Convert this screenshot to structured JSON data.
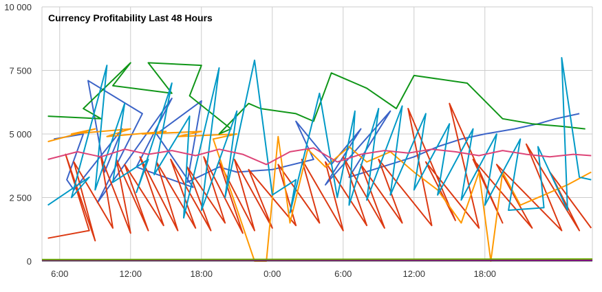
{
  "chart_data": {
    "type": "line",
    "title": "Currency Profitability Last 48 Hours",
    "xlabel": "",
    "ylabel": "",
    "ylim": [
      0,
      10000
    ],
    "xlim": [
      4.5,
      51.1
    ],
    "grid": true,
    "y_ticks": [
      {
        "value": 0,
        "label": "0"
      },
      {
        "value": 2500,
        "label": "2 500"
      },
      {
        "value": 5000,
        "label": "5 000"
      },
      {
        "value": 7500,
        "label": "7 500"
      },
      {
        "value": 10000,
        "label": "10 000"
      }
    ],
    "x_ticks": [
      {
        "value": 6,
        "label": "6:00"
      },
      {
        "value": 12,
        "label": "12:00"
      },
      {
        "value": 18,
        "label": "18:00"
      },
      {
        "value": 24,
        "label": "0:00"
      },
      {
        "value": 30,
        "label": "6:00"
      },
      {
        "value": 36,
        "label": "12:00"
      },
      {
        "value": 42,
        "label": "18:00"
      }
    ],
    "series": [
      {
        "color": "#3b63c7",
        "x": [
          5.5,
          8.0,
          6.6,
          7.2,
          11.3,
          9.8,
          8.4,
          13.0,
          9.2,
          15.5,
          12.5,
          17.3,
          14.2,
          18.0,
          16.8,
          19.5,
          21.0,
          24.0,
          27.5,
          26.0,
          29.0,
          31.5,
          28.5,
          34.0,
          30.5,
          36.0,
          38.0,
          40.0,
          42.0,
          44.5,
          46.5,
          48.0,
          50.0
        ],
        "y": [
          4800,
          5000,
          3200,
          2800,
          5200,
          3500,
          7100,
          5800,
          2300,
          6400,
          3700,
          2900,
          5000,
          6300,
          3100,
          3700,
          3500,
          3600,
          4000,
          5500,
          3800,
          5200,
          3000,
          5900,
          3300,
          4100,
          4500,
          4800,
          5000,
          5200,
          5400,
          5600,
          5800
        ]
      },
      {
        "color": "#dc3912",
        "x": [
          5.0,
          8.5,
          6.5,
          9.0,
          7.2,
          10.5,
          9.5,
          12.0,
          10.8,
          13.5,
          11.5,
          14.8,
          12.8,
          16.0,
          14.2,
          17.5,
          15.4,
          18.8,
          16.8,
          20.0,
          18.2,
          21.5,
          19.5,
          22.5,
          20.8,
          24.0,
          22.0,
          26.0,
          24.5,
          28.0,
          26.5,
          30.0,
          28.5,
          32.0,
          30.0,
          33.5,
          31.5,
          35.0,
          33.0,
          37.5,
          35.5,
          39.5,
          37.0,
          41.5,
          39.0,
          43.5,
          41.0,
          46.0,
          43.0,
          48.5,
          45.5,
          50.0,
          47.5,
          51.0
        ],
        "y": [
          900,
          1200,
          4200,
          800,
          3900,
          1300,
          4100,
          1100,
          4000,
          1200,
          3800,
          1400,
          4100,
          1200,
          3900,
          1300,
          4000,
          1200,
          3700,
          1500,
          4100,
          1100,
          3900,
          1200,
          4000,
          1300,
          3600,
          1400,
          3800,
          1500,
          4000,
          1200,
          3900,
          1400,
          4100,
          1300,
          3800,
          1500,
          4000,
          1400,
          6000,
          1600,
          3900,
          1300,
          6200,
          1500,
          4000,
          1300,
          3800,
          1200,
          4600,
          1200,
          3500,
          1300
        ]
      },
      {
        "color": "#ff9900",
        "x": [
          5.0,
          9.0,
          7.0,
          12.0,
          10.0,
          15.0,
          13.0,
          18.0,
          16.0,
          21.0,
          19.0,
          22.5,
          23.5,
          24.5,
          25.5,
          27.0,
          28.5,
          30.5,
          32.0,
          34.0,
          36.0,
          38.0,
          40.0,
          41.5,
          42.5,
          43.5,
          45.0,
          47.0,
          49.0,
          51.0
        ],
        "y": [
          4700,
          5200,
          5000,
          5200,
          4900,
          5100,
          5000,
          5100,
          4900,
          5000,
          4800,
          0,
          0,
          4900,
          1500,
          4400,
          3700,
          4500,
          3900,
          4300,
          3500,
          2800,
          1500,
          3500,
          0,
          3500,
          2200,
          2600,
          3000,
          3500
        ]
      },
      {
        "color": "#109618",
        "x": [
          5.0,
          9.5,
          8.0,
          12.0,
          10.5,
          15.5,
          13.5,
          18.0,
          17.0,
          20.5,
          19.5,
          22.0,
          23.0,
          26.0,
          27.5,
          29.0,
          32.0,
          34.5,
          36.0,
          40.5,
          43.5,
          46.0,
          48.5,
          50.5
        ],
        "y": [
          5700,
          5600,
          6000,
          7800,
          6900,
          6600,
          7800,
          7700,
          6500,
          5200,
          5000,
          6200,
          6000,
          5800,
          5500,
          7400,
          6800,
          6000,
          7300,
          7000,
          5600,
          5400,
          5300,
          5200
        ]
      },
      {
        "color": "#0099c6",
        "x": [
          5.0,
          8.5,
          7.0,
          10.0,
          9.0,
          11.5,
          10.5,
          13.5,
          12.5,
          15.5,
          14.0,
          17.0,
          16.5,
          19.5,
          18.0,
          21.0,
          20.0,
          22.5,
          24.0,
          26.0,
          25.5,
          28.0,
          29.5,
          31.0,
          30.5,
          33.0,
          32.0,
          35.0,
          34.0,
          37.0,
          36.0,
          39.0,
          38.0,
          41.0,
          40.0,
          43.0,
          42.0,
          45.0,
          44.0,
          47.0,
          46.5,
          49.0,
          48.5,
          50.0,
          51.0
        ],
        "y": [
          2200,
          3300,
          2500,
          7700,
          2800,
          6200,
          3100,
          4000,
          2700,
          7000,
          3400,
          5700,
          1700,
          7600,
          2000,
          5900,
          2500,
          7900,
          2600,
          3200,
          1900,
          6600,
          2500,
          5900,
          2200,
          6000,
          2400,
          6100,
          2600,
          5800,
          2800,
          5400,
          2600,
          5200,
          2400,
          5000,
          2200,
          4800,
          2000,
          2100,
          4500,
          2000,
          8000,
          3300,
          3200
        ]
      },
      {
        "color": "#dd4477",
        "x": [
          5.0,
          7.5,
          9.5,
          11.5,
          13.5,
          15.5,
          17.5,
          19.5,
          21.5,
          23.5,
          25.5,
          27.5,
          29.5,
          31.5,
          33.5,
          35.5,
          37.5,
          39.5,
          41.5,
          43.5,
          45.5,
          47.5,
          49.5,
          51.0
        ],
        "y": [
          4000,
          4300,
          4100,
          4400,
          4200,
          4350,
          4150,
          4400,
          4200,
          3800,
          4300,
          4450,
          3900,
          4200,
          4350,
          4250,
          4400,
          4300,
          4150,
          4350,
          4200,
          4100,
          4200,
          4150
        ]
      },
      {
        "color": "#990099",
        "x": [
          4.5,
          51.1
        ],
        "y": [
          30,
          30
        ]
      },
      {
        "color": "#66aa00",
        "x": [
          4.5,
          51.1
        ],
        "y": [
          60,
          80
        ]
      }
    ]
  }
}
